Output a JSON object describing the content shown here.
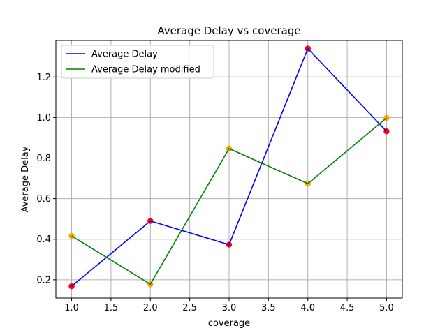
{
  "chart_data": {
    "type": "line",
    "title": "Average Delay vs coverage",
    "xlabel": "coverage",
    "ylabel": "Average Delay",
    "xlim": [
      0.8,
      5.2
    ],
    "ylim": [
      0.11,
      1.38
    ],
    "xticks": [
      1.0,
      1.5,
      2.0,
      2.5,
      3.0,
      3.5,
      4.0,
      4.5,
      5.0
    ],
    "xtick_labels": [
      "1.0",
      "1.5",
      "2.0",
      "2.5",
      "3.0",
      "3.5",
      "4.0",
      "4.5",
      "5.0"
    ],
    "yticks": [
      0.2,
      0.4,
      0.6,
      0.8,
      1.0,
      1.2
    ],
    "ytick_labels": [
      "0.2",
      "0.4",
      "0.6",
      "0.8",
      "1.0",
      "1.2"
    ],
    "grid": true,
    "legend_position": "top-left",
    "x": [
      1,
      2,
      3,
      4,
      5
    ],
    "series": [
      {
        "name": "Average Delay",
        "values": [
          0.168,
          0.49,
          0.373,
          1.34,
          0.932
        ],
        "line_color": "#0000ff",
        "marker_color": "#ff0000"
      },
      {
        "name": "Average Delay modified",
        "values": [
          0.416,
          0.178,
          0.847,
          0.674,
          0.998
        ],
        "line_color": "#008000",
        "marker_color": "#ffa500"
      }
    ]
  }
}
